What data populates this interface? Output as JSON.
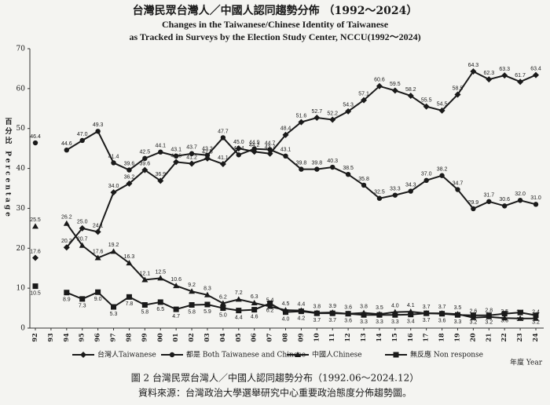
{
  "chart_data": {
    "type": "line",
    "title": "台灣民眾台灣人／中國人認同趨勢分佈 （1992～2024）",
    "subtitle": [
      "Changes in the Taiwanese/Chinese Identity of Taiwanese",
      "as Tracked in Surveys by the Election Study Center, NCCU(1992～2024)"
    ],
    "ylabel": "百分比 Percentage",
    "xlabel": "年度 Year",
    "caption": "圖 2 台灣民眾台灣人／中國人認同趨勢分布（1992.06～2024.12）",
    "source": "資料來源：台灣政治大學選舉研究中心重要政治態度分佈趨勢圖。",
    "categories": [
      "92",
      "93",
      "94",
      "95",
      "96",
      "97",
      "98",
      "99",
      "00",
      "01",
      "02",
      "03",
      "04",
      "05",
      "06",
      "07",
      "08",
      "09",
      "10",
      "11",
      "12",
      "13",
      "14",
      "15",
      "16",
      "17",
      "18",
      "19",
      "20",
      "21",
      "22",
      "23",
      "24"
    ],
    "ylim": [
      0,
      70
    ],
    "yticks": [
      0,
      10,
      20,
      30,
      40,
      50,
      60,
      70
    ],
    "grid": false,
    "legend": "bottom",
    "series": [
      {
        "name": "台灣人Taiwanese",
        "color": "#1a1a1a",
        "marker": "diamond",
        "values": [
          17.6,
          null,
          20.2,
          25.0,
          24.1,
          34.0,
          36.2,
          39.6,
          36.9,
          41.6,
          41.2,
          42.5,
          41.1,
          45.0,
          44.2,
          43.7,
          48.4,
          51.6,
          52.7,
          52.2,
          54.3,
          57.1,
          60.6,
          59.5,
          58.2,
          55.5,
          54.5,
          58.5,
          64.3,
          62.3,
          63.3,
          61.7,
          63.4
        ],
        "value_labels": [
          "17.6",
          null,
          "20.2",
          "25.0",
          "24.1",
          "34.0",
          "36.2",
          "39.6",
          "36.9",
          "41.6",
          "41.2",
          "42.5",
          "41.1",
          "45.0",
          "44.2",
          "43.7",
          "48.4",
          "51.6",
          "52.7",
          "52.2",
          "54.3",
          "57.1",
          "60.6",
          "59.5",
          "58.2",
          "55.5",
          "54.5",
          "58.5",
          "64.3",
          "62.3",
          "63.3",
          "61.7",
          "63.4"
        ]
      },
      {
        "name": "都是 Both Taiwanese and Chinese",
        "color": "#1a1a1a",
        "marker": "circle",
        "values": [
          46.4,
          null,
          44.6,
          47.0,
          49.3,
          41.4,
          39.6,
          42.5,
          44.1,
          43.1,
          43.7,
          43.3,
          47.7,
          43.4,
          44.9,
          44.7,
          43.1,
          39.8,
          39.8,
          40.3,
          38.5,
          35.8,
          32.5,
          33.3,
          34.3,
          37.0,
          38.2,
          34.7,
          29.9,
          31.7,
          30.6,
          32.0,
          31.0
        ],
        "value_labels": [
          "46.4",
          null,
          "44.6",
          "47.0",
          "49.3",
          "41.4",
          "39.6",
          "42.5",
          "44.1",
          "43.1",
          "43.7",
          "43.3",
          "47.7",
          "43.4",
          "44.9",
          "44.7",
          "43.1",
          "39.8",
          "39.8",
          "40.3",
          "38.5",
          "35.8",
          "32.5",
          "33.3",
          "34.3",
          "37.0",
          "38.2",
          "34.7",
          "29.9",
          "31.7",
          "30.6",
          "32.0",
          "31.0"
        ]
      },
      {
        "name": "中國人Chinese",
        "color": "#1a1a1a",
        "marker": "triangle",
        "values": [
          25.5,
          null,
          26.2,
          20.7,
          17.6,
          19.2,
          16.3,
          12.1,
          12.5,
          10.6,
          9.2,
          8.3,
          6.2,
          7.2,
          6.3,
          5.4,
          4.5,
          4.4,
          3.8,
          3.9,
          3.6,
          3.8,
          3.5,
          4.0,
          4.1,
          3.7,
          3.7,
          3.5,
          2.6,
          2.8,
          2.5,
          2.4,
          2.4
        ],
        "value_labels": [
          "25.5",
          null,
          "26.2",
          "20.7",
          "17.6",
          "19.2",
          "16.3",
          "12.1",
          "12.5",
          "10.6",
          "9.2",
          "8.3",
          "6.2",
          "7.2",
          "6.3",
          "5.4",
          "4.5",
          "4.4",
          "3.8",
          "3.9",
          "3.6",
          "3.8",
          "3.5",
          "4.0",
          "4.1",
          "3.7",
          "3.7",
          "3.5",
          "2.6",
          "2.8",
          "2.5",
          "2.4",
          "2.4"
        ]
      },
      {
        "name": "無反應 Non response",
        "color": "#1a1a1a",
        "marker": "square",
        "values": [
          10.5,
          null,
          8.9,
          7.3,
          9.0,
          5.3,
          7.8,
          5.8,
          6.5,
          4.7,
          5.8,
          5.9,
          5.0,
          4.4,
          4.6,
          6.2,
          4.0,
          4.2,
          3.7,
          3.7,
          3.6,
          3.3,
          3.3,
          3.3,
          3.4,
          3.7,
          3.6,
          3.3,
          3.2,
          3.2,
          3.6,
          3.9,
          3.2
        ],
        "value_labels": [
          "10.5",
          null,
          "8.9",
          "7.3",
          "9.0",
          "5.3",
          "7.8",
          "5.8",
          "6.5",
          "4.7",
          "5.8",
          "5.9",
          "5.0",
          "4.4",
          "4.6",
          "6.2",
          "4.0",
          "4.2",
          "3.7",
          "3.7",
          "3.6",
          "3.3",
          "3.3",
          "3.3",
          "3.4",
          "3.7",
          "3.6",
          "3.3",
          "3.2",
          "3.2",
          "3.6",
          "3.9",
          "3.2"
        ]
      }
    ]
  }
}
